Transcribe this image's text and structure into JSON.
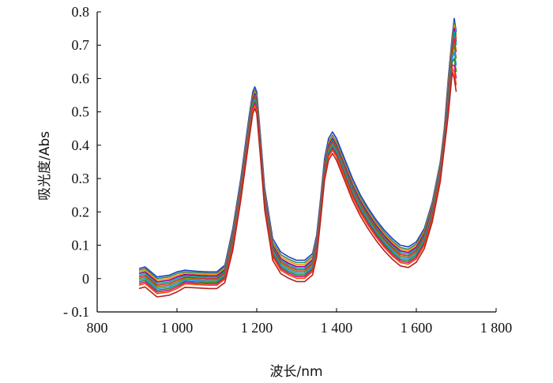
{
  "chart_data": {
    "type": "line",
    "xlabel": "波长/nm",
    "ylabel": "吸光度/Abs",
    "xlim": [
      800,
      1800
    ],
    "ylim": [
      -0.1,
      0.8
    ],
    "x_ticks": [
      800,
      1000,
      1200,
      1400,
      1600,
      1800
    ],
    "x_tick_labels": [
      "800",
      "1 000",
      "1 200",
      "1 400",
      "1 600",
      "1 800"
    ],
    "y_ticks": [
      -0.1,
      0,
      0.1,
      0.2,
      0.3,
      0.4,
      0.5,
      0.6,
      0.7,
      0.8
    ],
    "y_tick_labels": [
      "- 0.1",
      "0",
      "0.1",
      "0.2",
      "0.3",
      "0.4",
      "0.5",
      "0.6",
      "0.7",
      "0.8"
    ],
    "grid": false,
    "legend": "none",
    "series_count": 12,
    "x": [
      905,
      920,
      930,
      950,
      980,
      1000,
      1020,
      1050,
      1080,
      1100,
      1120,
      1140,
      1160,
      1180,
      1190,
      1195,
      1200,
      1210,
      1220,
      1240,
      1260,
      1280,
      1300,
      1320,
      1340,
      1350,
      1360,
      1370,
      1380,
      1390,
      1400,
      1420,
      1440,
      1460,
      1480,
      1500,
      1520,
      1540,
      1560,
      1580,
      1600,
      1620,
      1640,
      1660,
      1670,
      1680,
      1690,
      1695,
      1700
    ],
    "series": [
      {
        "color": "#1f3fbf",
        "values": [
          0.03,
          0.035,
          0.025,
          0.005,
          0.01,
          0.02,
          0.025,
          0.022,
          0.02,
          0.02,
          0.04,
          0.15,
          0.3,
          0.48,
          0.56,
          0.575,
          0.56,
          0.42,
          0.27,
          0.12,
          0.08,
          0.065,
          0.055,
          0.055,
          0.075,
          0.13,
          0.24,
          0.36,
          0.42,
          0.44,
          0.42,
          0.36,
          0.3,
          0.25,
          0.21,
          0.175,
          0.145,
          0.12,
          0.1,
          0.095,
          0.11,
          0.15,
          0.23,
          0.35,
          0.45,
          0.6,
          0.73,
          0.78,
          0.74
        ]
      },
      {
        "color": "#2e8b57",
        "values": [
          0.025,
          0.03,
          0.02,
          0.0,
          0.005,
          0.015,
          0.02,
          0.018,
          0.016,
          0.016,
          0.035,
          0.14,
          0.29,
          0.47,
          0.55,
          0.565,
          0.55,
          0.41,
          0.26,
          0.11,
          0.072,
          0.058,
          0.048,
          0.048,
          0.068,
          0.12,
          0.23,
          0.35,
          0.41,
          0.43,
          0.41,
          0.35,
          0.29,
          0.242,
          0.203,
          0.168,
          0.138,
          0.113,
          0.093,
          0.088,
          0.104,
          0.145,
          0.225,
          0.345,
          0.445,
          0.59,
          0.72,
          0.77,
          0.73
        ]
      },
      {
        "color": "#ff8c00",
        "values": [
          0.02,
          0.025,
          0.015,
          -0.005,
          0.0,
          0.01,
          0.016,
          0.014,
          0.012,
          0.012,
          0.03,
          0.135,
          0.285,
          0.46,
          0.545,
          0.56,
          0.545,
          0.405,
          0.255,
          0.105,
          0.066,
          0.052,
          0.042,
          0.042,
          0.062,
          0.115,
          0.225,
          0.345,
          0.405,
          0.425,
          0.405,
          0.345,
          0.285,
          0.237,
          0.198,
          0.163,
          0.133,
          0.108,
          0.088,
          0.083,
          0.099,
          0.14,
          0.22,
          0.34,
          0.44,
          0.58,
          0.71,
          0.76,
          0.72
        ]
      },
      {
        "color": "#8b008b",
        "values": [
          0.015,
          0.02,
          0.01,
          -0.01,
          -0.005,
          0.005,
          0.012,
          0.01,
          0.008,
          0.008,
          0.026,
          0.13,
          0.28,
          0.455,
          0.54,
          0.555,
          0.54,
          0.4,
          0.25,
          0.1,
          0.06,
          0.046,
          0.036,
          0.036,
          0.056,
          0.11,
          0.22,
          0.34,
          0.4,
          0.42,
          0.4,
          0.34,
          0.28,
          0.232,
          0.193,
          0.158,
          0.128,
          0.103,
          0.083,
          0.078,
          0.094,
          0.135,
          0.215,
          0.335,
          0.435,
          0.57,
          0.7,
          0.75,
          0.71
        ]
      },
      {
        "color": "#00a0a0",
        "values": [
          0.01,
          0.015,
          0.005,
          -0.015,
          -0.01,
          0.0,
          0.008,
          0.006,
          0.004,
          0.004,
          0.022,
          0.125,
          0.275,
          0.45,
          0.535,
          0.55,
          0.535,
          0.395,
          0.245,
          0.095,
          0.055,
          0.041,
          0.031,
          0.031,
          0.051,
          0.105,
          0.215,
          0.335,
          0.395,
          0.415,
          0.395,
          0.335,
          0.275,
          0.227,
          0.188,
          0.153,
          0.123,
          0.098,
          0.078,
          0.073,
          0.089,
          0.13,
          0.21,
          0.33,
          0.43,
          0.56,
          0.69,
          0.74,
          0.7
        ]
      },
      {
        "color": "#d62728",
        "values": [
          0.005,
          0.01,
          0.0,
          -0.02,
          -0.015,
          -0.005,
          0.004,
          0.002,
          0.0,
          0.0,
          0.018,
          0.12,
          0.27,
          0.445,
          0.53,
          0.545,
          0.53,
          0.39,
          0.24,
          0.09,
          0.05,
          0.036,
          0.026,
          0.026,
          0.046,
          0.1,
          0.21,
          0.33,
          0.39,
          0.41,
          0.39,
          0.33,
          0.27,
          0.222,
          0.183,
          0.148,
          0.118,
          0.093,
          0.073,
          0.068,
          0.084,
          0.125,
          0.205,
          0.325,
          0.425,
          0.55,
          0.68,
          0.72,
          0.68
        ]
      },
      {
        "color": "#7f7f00",
        "values": [
          0.0,
          0.005,
          -0.005,
          -0.025,
          -0.02,
          -0.01,
          0.0,
          -0.002,
          -0.004,
          -0.004,
          0.014,
          0.115,
          0.265,
          0.44,
          0.525,
          0.54,
          0.525,
          0.385,
          0.235,
          0.085,
          0.045,
          0.031,
          0.021,
          0.021,
          0.041,
          0.095,
          0.205,
          0.325,
          0.385,
          0.405,
          0.385,
          0.325,
          0.265,
          0.217,
          0.178,
          0.143,
          0.113,
          0.088,
          0.068,
          0.063,
          0.079,
          0.12,
          0.2,
          0.32,
          0.42,
          0.54,
          0.67,
          0.7,
          0.66
        ]
      },
      {
        "color": "#1e90ff",
        "values": [
          -0.005,
          0.0,
          -0.01,
          -0.03,
          -0.025,
          -0.015,
          -0.004,
          -0.006,
          -0.008,
          -0.008,
          0.01,
          0.11,
          0.26,
          0.435,
          0.52,
          0.535,
          0.52,
          0.38,
          0.23,
          0.08,
          0.04,
          0.026,
          0.016,
          0.016,
          0.036,
          0.09,
          0.2,
          0.32,
          0.38,
          0.4,
          0.38,
          0.32,
          0.26,
          0.212,
          0.173,
          0.138,
          0.108,
          0.083,
          0.063,
          0.058,
          0.074,
          0.115,
          0.195,
          0.315,
          0.415,
          0.53,
          0.66,
          0.68,
          0.64
        ]
      },
      {
        "color": "#228b22",
        "values": [
          -0.01,
          -0.005,
          -0.015,
          -0.035,
          -0.03,
          -0.02,
          -0.008,
          -0.01,
          -0.012,
          -0.012,
          0.006,
          0.105,
          0.255,
          0.43,
          0.515,
          0.53,
          0.515,
          0.375,
          0.225,
          0.075,
          0.035,
          0.021,
          0.011,
          0.011,
          0.031,
          0.085,
          0.195,
          0.315,
          0.375,
          0.395,
          0.375,
          0.315,
          0.255,
          0.207,
          0.168,
          0.133,
          0.103,
          0.078,
          0.058,
          0.053,
          0.069,
          0.11,
          0.19,
          0.31,
          0.41,
          0.52,
          0.65,
          0.66,
          0.62
        ]
      },
      {
        "color": "#c71585",
        "values": [
          -0.015,
          -0.01,
          -0.02,
          -0.04,
          -0.035,
          -0.025,
          -0.012,
          -0.014,
          -0.016,
          -0.016,
          0.002,
          0.1,
          0.25,
          0.425,
          0.51,
          0.525,
          0.51,
          0.37,
          0.22,
          0.07,
          0.03,
          0.016,
          0.006,
          0.006,
          0.026,
          0.08,
          0.19,
          0.31,
          0.37,
          0.39,
          0.37,
          0.31,
          0.25,
          0.202,
          0.163,
          0.128,
          0.098,
          0.073,
          0.053,
          0.048,
          0.064,
          0.105,
          0.185,
          0.305,
          0.405,
          0.51,
          0.64,
          0.64,
          0.6
        ]
      },
      {
        "color": "#ff4500",
        "values": [
          -0.02,
          -0.015,
          -0.025,
          -0.045,
          -0.04,
          -0.03,
          -0.016,
          -0.018,
          -0.02,
          -0.02,
          -0.002,
          0.095,
          0.245,
          0.42,
          0.505,
          0.52,
          0.505,
          0.365,
          0.215,
          0.065,
          0.025,
          0.011,
          0.001,
          0.001,
          0.021,
          0.075,
          0.185,
          0.305,
          0.365,
          0.385,
          0.365,
          0.305,
          0.245,
          0.197,
          0.158,
          0.123,
          0.093,
          0.068,
          0.048,
          0.043,
          0.059,
          0.1,
          0.18,
          0.3,
          0.4,
          0.5,
          0.63,
          0.62,
          0.58
        ]
      },
      {
        "color": "#b22222",
        "values": [
          -0.03,
          -0.025,
          -0.035,
          -0.055,
          -0.05,
          -0.04,
          -0.026,
          -0.028,
          -0.03,
          -0.03,
          -0.012,
          0.085,
          0.235,
          0.41,
          0.495,
          0.51,
          0.495,
          0.355,
          0.205,
          0.055,
          0.015,
          0.001,
          -0.009,
          -0.009,
          0.011,
          0.065,
          0.175,
          0.295,
          0.355,
          0.375,
          0.355,
          0.295,
          0.235,
          0.187,
          0.148,
          0.113,
          0.083,
          0.058,
          0.038,
          0.033,
          0.049,
          0.09,
          0.17,
          0.29,
          0.39,
          0.49,
          0.62,
          0.6,
          0.56
        ]
      }
    ]
  }
}
